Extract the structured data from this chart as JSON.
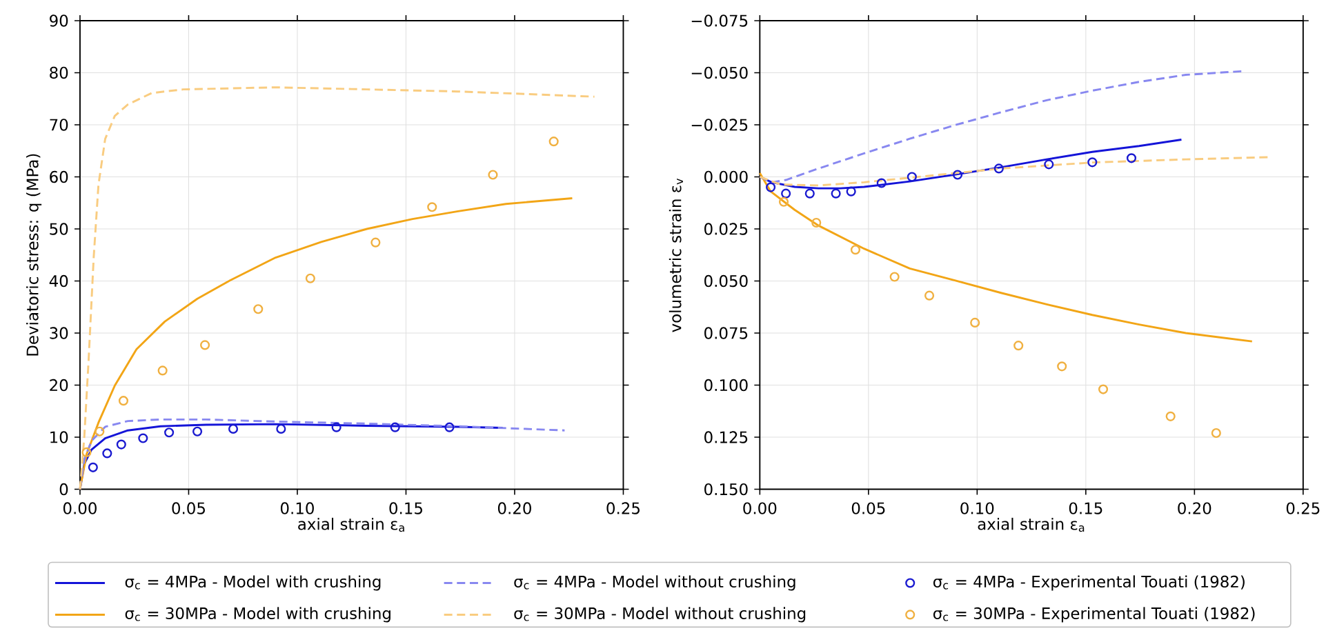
{
  "chart_data": [
    {
      "type": "line",
      "xlabel": "axial strain ε$_{a}$",
      "ylabel": "Deviatoric stress: q (MPa)",
      "xlim": [
        0,
        0.25
      ],
      "ylim": [
        0,
        90
      ],
      "xticks": [
        {
          "value": 0,
          "label": "0.00"
        },
        {
          "value": 0.05,
          "label": "0.05"
        },
        {
          "value": 0.1,
          "label": "0.10"
        },
        {
          "value": 0.15,
          "label": "0.15"
        },
        {
          "value": 0.2,
          "label": "0.20"
        },
        {
          "value": 0.25,
          "label": "0.25"
        }
      ],
      "yticks": [
        0,
        10,
        20,
        30,
        40,
        50,
        60,
        70,
        80,
        90
      ],
      "grid": true,
      "legend": "bottom",
      "series": [
        {
          "name": "σ$_{c}$ = 4MPa - Model with crushing",
          "line_style": "solid",
          "color": "#1414d8",
          "x": [
            0,
            0.002,
            0.0053,
            0.0116,
            0.022,
            0.037,
            0.058,
            0.09,
            0.132,
            0.174,
            0.1945
          ],
          "values": [
            0,
            4.9,
            7.6,
            9.8,
            11.3,
            12.1,
            12.4,
            12.5,
            12.2,
            12.0,
            11.8
          ]
        },
        {
          "name": "σ$_{c}$ = 30MPa - Model with crushing",
          "line_style": "solid",
          "color": "#f2a516",
          "x": [
            0,
            0.003,
            0.0085,
            0.016,
            0.026,
            0.039,
            0.054,
            0.069,
            0.09,
            0.111,
            0.132,
            0.153,
            0.174,
            0.196,
            0.2265
          ],
          "values": [
            0,
            6.7,
            12.8,
            19.9,
            26.9,
            32.2,
            36.6,
            40.1,
            44.5,
            47.5,
            50.0,
            51.9,
            53.4,
            54.8,
            55.9
          ]
        },
        {
          "name": "σ$_{c}$ = 4MPa - Model without crushing",
          "line_style": "dashed",
          "color": "#8888f0",
          "x": [
            0,
            0.002,
            0.0053,
            0.0116,
            0.022,
            0.037,
            0.058,
            0.09,
            0.132,
            0.174,
            0.223
          ],
          "values": [
            0,
            5.8,
            9.3,
            12.0,
            13.1,
            13.4,
            13.4,
            13.0,
            12.6,
            12.1,
            11.3
          ]
        },
        {
          "name": "σ$_{c}$ = 30MPa - Model without crushing",
          "line_style": "dashed",
          "color": "#f9cc80",
          "x": [
            0,
            0.002,
            0.004,
            0.0063,
            0.0085,
            0.0116,
            0.016,
            0.022,
            0.033,
            0.0475,
            0.069,
            0.09,
            0.132,
            0.174,
            0.206,
            0.2367
          ],
          "values": [
            0,
            10.2,
            25.1,
            44.5,
            58.5,
            67.3,
            71.7,
            73.9,
            76.1,
            76.8,
            77.0,
            77.2,
            76.8,
            76.4,
            75.9,
            75.4
          ]
        },
        {
          "name": "σ$_{c}$ = 4MPa - Experimental Touati (1982)",
          "type": "scatter",
          "marker": "circle",
          "color": "#1a1ad0",
          "x": [
            0.006,
            0.0125,
            0.019,
            0.029,
            0.041,
            0.054,
            0.0705,
            0.0925,
            0.118,
            0.145,
            0.17
          ],
          "values": [
            4.2,
            6.9,
            8.6,
            9.8,
            10.9,
            11.1,
            11.6,
            11.6,
            11.9,
            11.9,
            11.9
          ]
        },
        {
          "name": "σ$_{c}$ = 30MPa - Experimental Touati (1982)",
          "type": "scatter",
          "marker": "circle",
          "color": "#f0b040",
          "x": [
            0.003,
            0.009,
            0.02,
            0.038,
            0.0575,
            0.082,
            0.106,
            0.136,
            0.162,
            0.19,
            0.218
          ],
          "values": [
            7.1,
            11.1,
            17.0,
            22.8,
            27.7,
            34.6,
            40.5,
            47.4,
            54.2,
            60.4,
            66.8
          ]
        }
      ]
    },
    {
      "type": "line",
      "xlabel": "axial strain ε$_{a}$",
      "ylabel": "volumetric strain ε$_{v}$",
      "xlim": [
        0,
        0.25
      ],
      "ylim": [
        0.15,
        -0.075
      ],
      "xticks": [
        {
          "value": 0,
          "label": "0.00"
        },
        {
          "value": 0.05,
          "label": "0.05"
        },
        {
          "value": 0.1,
          "label": "0.10"
        },
        {
          "value": 0.15,
          "label": "0.15"
        },
        {
          "value": 0.2,
          "label": "0.20"
        },
        {
          "value": 0.25,
          "label": "0.25"
        }
      ],
      "yticks": [
        {
          "value": -0.075,
          "label": "−0.075"
        },
        {
          "value": -0.05,
          "label": "−0.050"
        },
        {
          "value": -0.025,
          "label": "−0.025"
        },
        {
          "value": 0,
          "label": "0.000"
        },
        {
          "value": 0.025,
          "label": "0.025"
        },
        {
          "value": 0.05,
          "label": "0.050"
        },
        {
          "value": 0.075,
          "label": "0.075"
        },
        {
          "value": 0.1,
          "label": "0.100"
        },
        {
          "value": 0.125,
          "label": "0.125"
        },
        {
          "value": 0.15,
          "label": "0.150"
        }
      ],
      "grid": true,
      "series": [
        {
          "line_style": "solid",
          "color": "#1414d8",
          "x": [
            0,
            0.0055,
            0.016,
            0.027,
            0.037,
            0.048,
            0.069,
            0.09,
            0.111,
            0.132,
            0.153,
            0.1745,
            0.194
          ],
          "values": [
            0,
            0.0026,
            0.0048,
            0.0055,
            0.0055,
            0.0048,
            0.0022,
            -0.0011,
            -0.0046,
            -0.0084,
            -0.012,
            -0.0148,
            -0.0179
          ]
        },
        {
          "line_style": "solid",
          "color": "#f2a516",
          "x": [
            0,
            0.005,
            0.016,
            0.027,
            0.048,
            0.069,
            0.09,
            0.111,
            0.132,
            0.153,
            0.1745,
            0.196,
            0.2265
          ],
          "values": [
            -0.0018,
            0.007,
            0.0158,
            0.0234,
            0.0345,
            0.044,
            0.0498,
            0.0557,
            0.0612,
            0.0663,
            0.0709,
            0.075,
            0.079
          ]
        },
        {
          "line_style": "dashed",
          "color": "#8888f0",
          "x": [
            0,
            0.0055,
            0.012,
            0.027,
            0.048,
            0.069,
            0.09,
            0.111,
            0.132,
            0.153,
            0.1745,
            0.196,
            0.223
          ],
          "values": [
            0,
            0.0026,
            0.0015,
            -0.004,
            -0.0113,
            -0.0183,
            -0.0249,
            -0.031,
            -0.0368,
            -0.0414,
            -0.0456,
            -0.049,
            -0.0508
          ]
        },
        {
          "line_style": "dashed",
          "color": "#f9cc80",
          "x": [
            0,
            0.0097,
            0.027,
            0.048,
            0.069,
            0.09,
            0.111,
            0.153,
            0.196,
            0.235
          ],
          "values": [
            0,
            0.0037,
            0.0041,
            0.0026,
            0.0004,
            -0.0018,
            -0.004,
            -0.0069,
            -0.0084,
            -0.0095
          ]
        },
        {
          "type": "scatter",
          "marker": "circle",
          "color": "#1a1ad0",
          "x": [
            0.005,
            0.012,
            0.023,
            0.035,
            0.042,
            0.056,
            0.07,
            0.091,
            0.11,
            0.133,
            0.153,
            0.171
          ],
          "values": [
            0.005,
            0.008,
            0.008,
            0.008,
            0.007,
            0.003,
            0.0,
            -0.001,
            -0.004,
            -0.006,
            -0.007,
            -0.009
          ]
        },
        {
          "type": "scatter",
          "marker": "circle",
          "color": "#f0b040",
          "x": [
            0.011,
            0.026,
            0.044,
            0.062,
            0.078,
            0.099,
            0.119,
            0.139,
            0.158,
            0.189,
            0.21
          ],
          "values": [
            0.012,
            0.022,
            0.035,
            0.048,
            0.057,
            0.07,
            0.081,
            0.091,
            0.102,
            0.115,
            0.123
          ]
        }
      ]
    }
  ]
}
